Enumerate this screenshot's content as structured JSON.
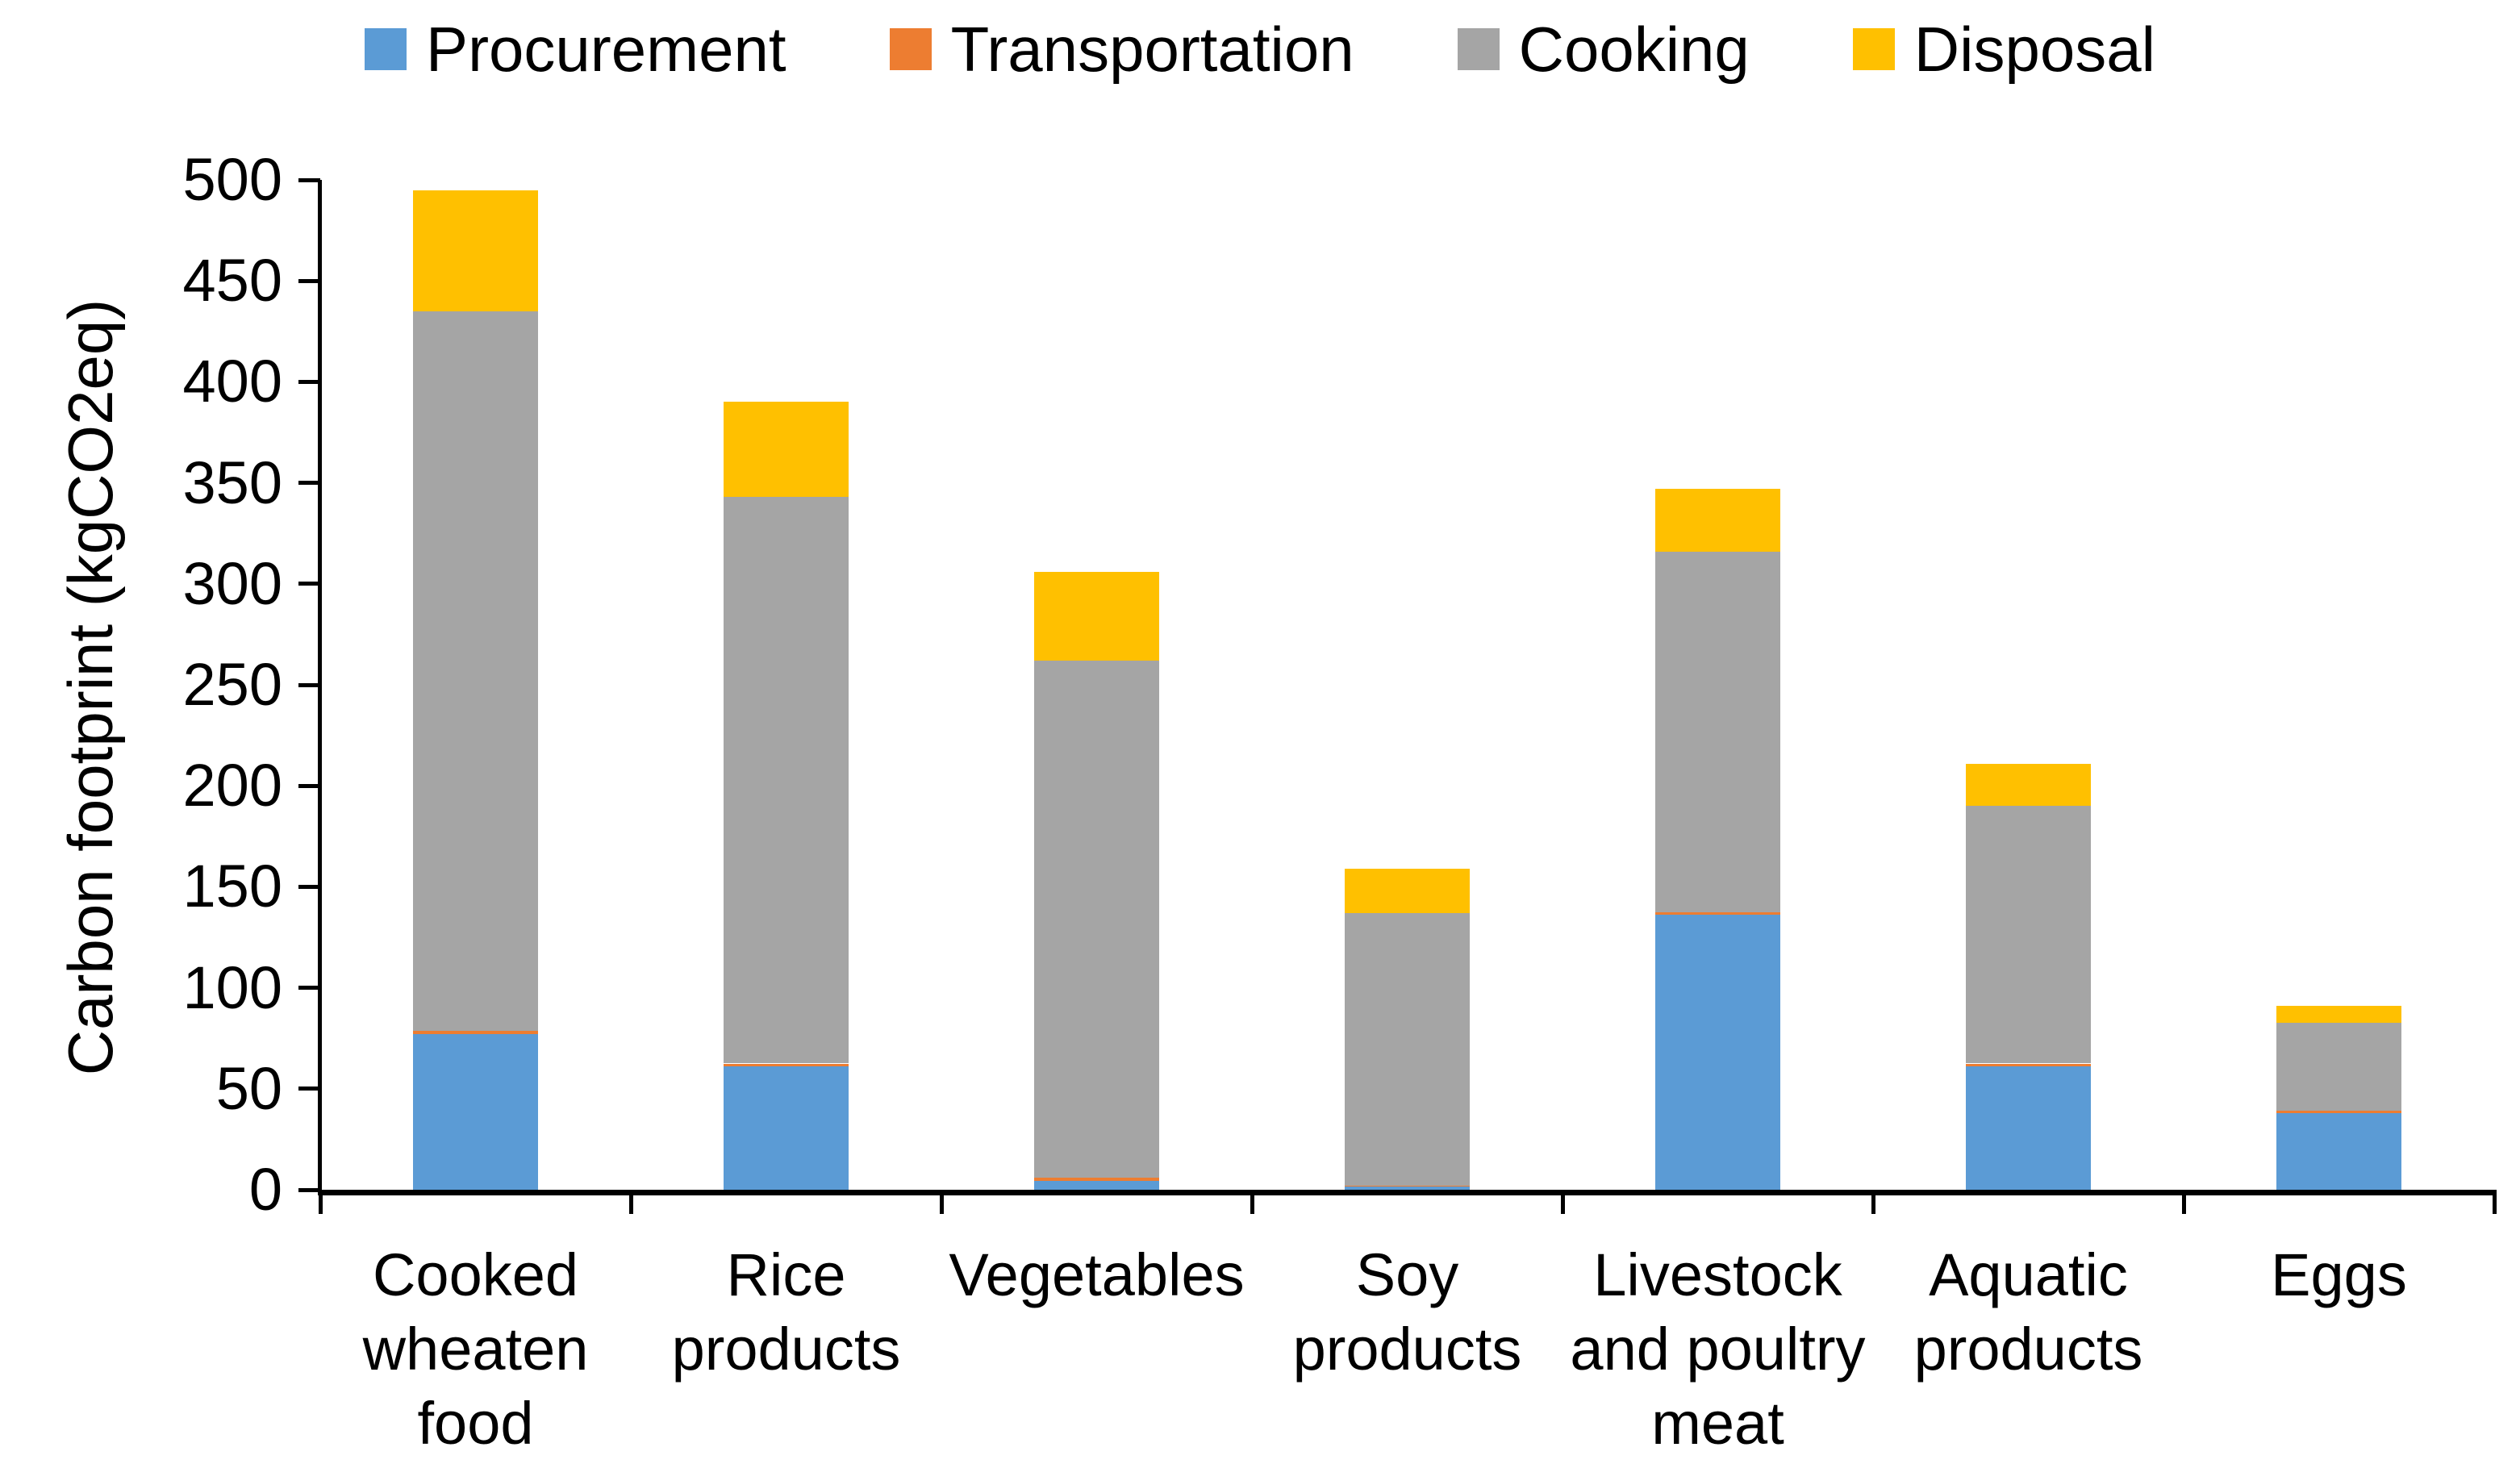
{
  "chart_data": {
    "type": "bar",
    "stacked": true,
    "title": "",
    "xlabel": "",
    "ylabel": "Carbon footprint (kgCO2eq)",
    "unit": "kgCO2eq",
    "ylim": [
      0,
      500
    ],
    "ytick_step": 50,
    "yticks": [
      0,
      50,
      100,
      150,
      200,
      250,
      300,
      350,
      400,
      450,
      500
    ],
    "grid": false,
    "legend_position": "top",
    "axis_color": "#000000",
    "categories": [
      "Cooked wheaten food",
      "Rice products",
      "Vegetables",
      "Soy products",
      "Livestock and poultry meat",
      "Aquatic products",
      "Eggs"
    ],
    "category_label_lines": [
      [
        "Cooked",
        "wheaten",
        "food"
      ],
      [
        "Rice",
        "products"
      ],
      [
        "Vegetables"
      ],
      [
        "Soy",
        "products"
      ],
      [
        "Livestock",
        "and poultry",
        "meat"
      ],
      [
        "Aquatic",
        "products"
      ],
      [
        "Eggs"
      ]
    ],
    "series": [
      {
        "name": "Procurement",
        "color": "#5B9BD5",
        "values": [
          77,
          61,
          4.5,
          1.5,
          136,
          61,
          38
        ]
      },
      {
        "name": "Transportation",
        "color": "#ED7D31",
        "values": [
          1.5,
          1.5,
          1.5,
          0.5,
          1.5,
          1.5,
          1
        ]
      },
      {
        "name": "Cooking",
        "color": "#A5A5A5",
        "values": [
          356.5,
          280.5,
          256,
          135,
          178.5,
          127.5,
          43.5
        ]
      },
      {
        "name": "Disposal",
        "color": "#FFC000",
        "values": [
          60,
          47,
          44,
          22,
          31,
          21,
          8.5
        ]
      }
    ],
    "totals": [
      495,
      390,
      306,
      159,
      347,
      211,
      91
    ]
  }
}
